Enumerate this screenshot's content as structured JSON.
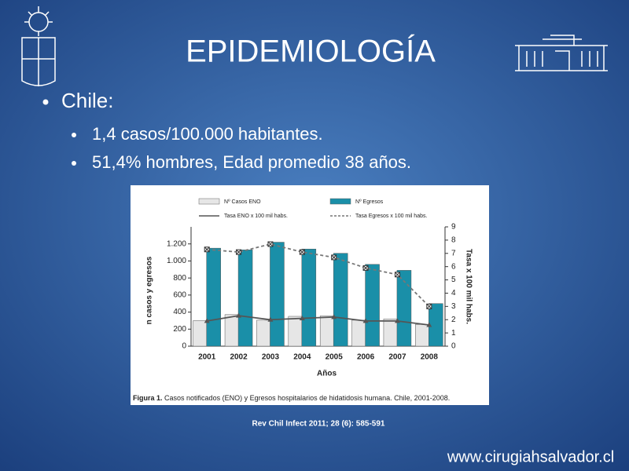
{
  "slide": {
    "title": "EPIDEMIOLOGÍA",
    "bullets": [
      "Chile:",
      "1,4 casos/100.000 habitantes.",
      "51,4% hombres, Edad promedio 38 años."
    ],
    "reference": "Rev Chil Infect 2011; 28 (6): 585-591",
    "website": "www.cirugiahsalvador.cl"
  },
  "chart_data": {
    "type": "bar",
    "caption_label": "Figura 1.",
    "caption": "Casos notificados (ENO) y Egresos hospitalarios de hidatidosis humana. Chile, 2001-2008.",
    "xlabel": "Años",
    "ylabel": "n casos y egresos",
    "y2label": "Tasa x 100 mil habs.",
    "categories": [
      "2001",
      "2002",
      "2003",
      "2004",
      "2005",
      "2006",
      "2007",
      "2008"
    ],
    "series": [
      {
        "name": "Nº Casos ENO",
        "type": "bar",
        "color": "#e6e6e6",
        "values": [
          300,
          370,
          305,
          350,
          355,
          305,
          320,
          255
        ]
      },
      {
        "name": "Nº Egresos",
        "type": "bar",
        "color": "#1a8fa8",
        "values": [
          1150,
          1130,
          1220,
          1140,
          1090,
          960,
          890,
          500
        ]
      },
      {
        "name": "Tasa ENO x 100 mil habs.",
        "type": "line",
        "axis": "y2",
        "color": "#555555",
        "marker": "triangle",
        "dashed": false,
        "values": [
          1.9,
          2.3,
          2.0,
          2.1,
          2.2,
          1.9,
          1.9,
          1.6
        ]
      },
      {
        "name": "Tasa Egresos x 100 mil habs.",
        "type": "line",
        "axis": "y2",
        "color": "#777777",
        "marker": "x-square",
        "dashed": true,
        "values": [
          7.3,
          7.1,
          7.7,
          7.1,
          6.7,
          5.9,
          5.4,
          3.0
        ]
      }
    ],
    "ylim": [
      0,
      1400
    ],
    "yticks": [
      0,
      200,
      400,
      600,
      800,
      {
        "value": 1000,
        "label": "1.000"
      },
      {
        "value": 1200,
        "label": "1.200"
      }
    ],
    "y2lim": [
      0,
      9
    ],
    "y2ticks": [
      0,
      1,
      2,
      3,
      4,
      5,
      6,
      7,
      8,
      9
    ],
    "grid": false
  }
}
